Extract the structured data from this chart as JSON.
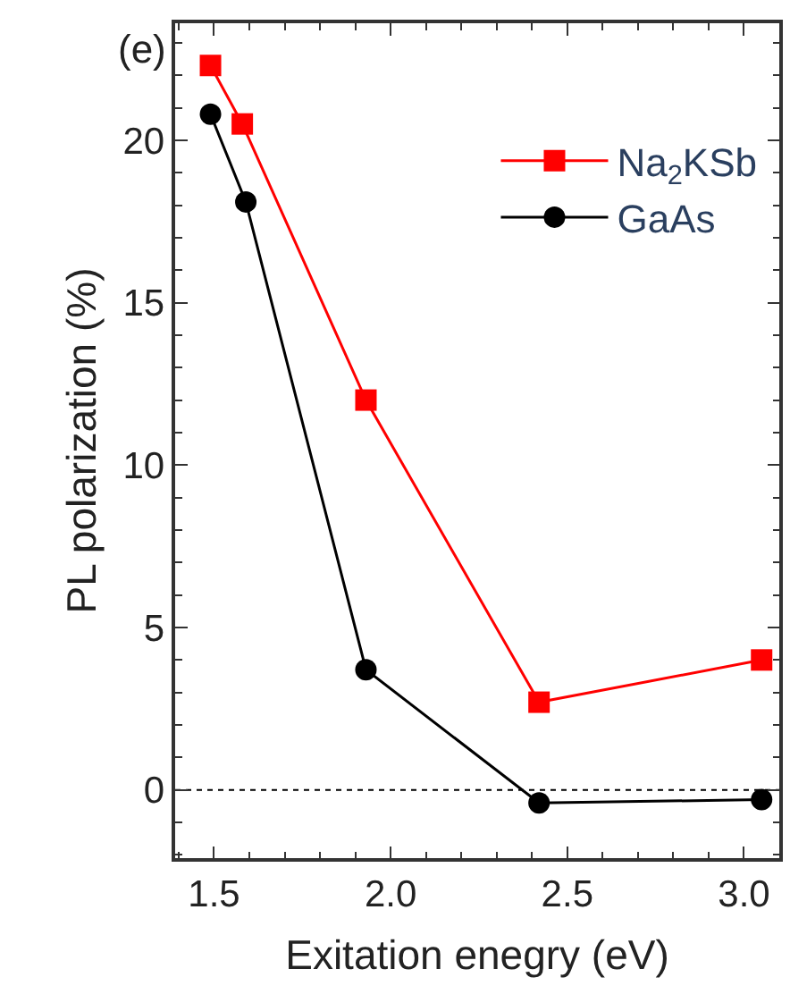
{
  "chart_data": {
    "type": "line",
    "title": "(e)",
    "xlabel": "Exitation enegry (eV)",
    "ylabel": "PL polarization (%)",
    "xlim": [
      1.39,
      3.1
    ],
    "xticks": [
      {
        "value": 1.5,
        "label": "1.5"
      },
      {
        "value": 2.0,
        "label": "2.0"
      },
      {
        "value": 2.5,
        "label": "2.5"
      },
      {
        "value": 3.0,
        "label": "3.0"
      }
    ],
    "ylim": [
      -2.1,
      23.6
    ],
    "yticks": [
      0,
      5,
      10,
      15,
      20
    ],
    "series": [
      {
        "name": "Na$_{2}$KSb",
        "color": "#ff0000",
        "marker": "square",
        "x": [
          1.49,
          1.58,
          1.93,
          2.42,
          3.05
        ],
        "values": [
          22.3,
          20.5,
          12.0,
          2.7,
          4.0
        ]
      },
      {
        "name": "GaAs",
        "color": "#000000",
        "marker": "circle",
        "x": [
          1.49,
          1.59,
          1.93,
          2.42,
          3.05
        ],
        "values": [
          20.8,
          18.1,
          3.7,
          -0.4,
          -0.3
        ]
      }
    ],
    "ref_lines": [
      {
        "axis": "y",
        "value": 0,
        "line_style": "dotted",
        "color": "#000000"
      }
    ],
    "legend": "top right",
    "grid": false
  }
}
